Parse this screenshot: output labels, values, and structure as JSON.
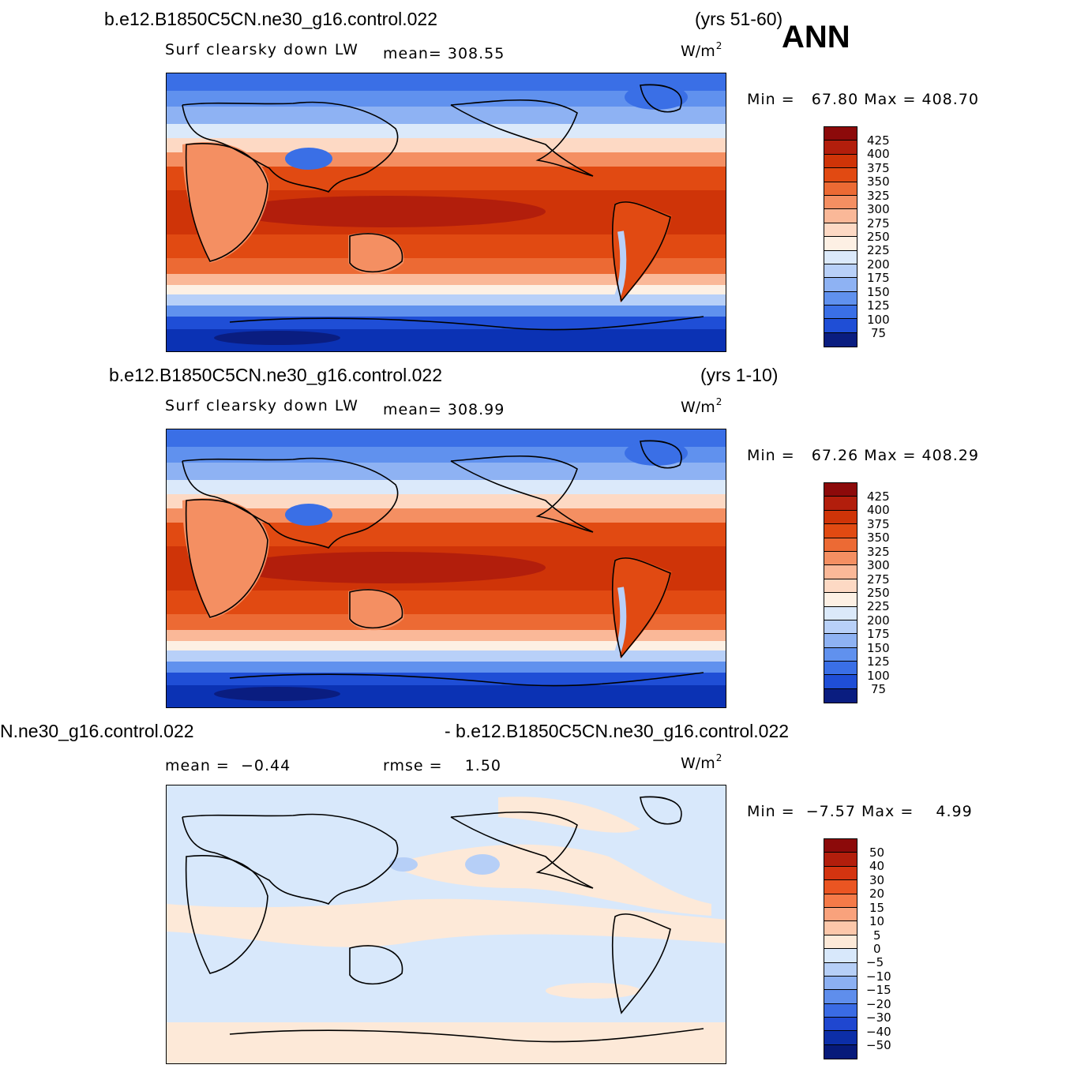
{
  "season": "ANN",
  "chart_data": [
    {
      "type": "heatmap",
      "case_title": "b.e12.B1850C5CN.ne30_g16.control.022",
      "years": "(yrs 51-60)",
      "variable": "Surf clearsky down LW",
      "stat_label": "mean=",
      "stat_value": "308.55",
      "units_base": "W/m",
      "units_exp": "2",
      "minmax": "Min =   67.80 Max = 408.70",
      "min": 67.8,
      "max": 408.7,
      "mean": 308.55,
      "colorbar": {
        "levels": [
          "425",
          "400",
          "375",
          "350",
          "325",
          "300",
          "275",
          "250",
          "225",
          "200",
          "175",
          "150",
          "125",
          "100",
          "75"
        ],
        "colors": [
          "#8c0a0a",
          "#b21e0c",
          "#cf3408",
          "#e14a12",
          "#ec6a34",
          "#f48f62",
          "#fab898",
          "#fdd9c4",
          "#fdf0e4",
          "#dbe9fa",
          "#b8d0f8",
          "#8eb2f3",
          "#6091ee",
          "#3a6fe6",
          "#1f4ed6",
          "#0b32b4",
          "#0a1d80"
        ]
      },
      "xlabel": "",
      "ylabel": ""
    },
    {
      "type": "heatmap",
      "case_title": "b.e12.B1850C5CN.ne30_g16.control.022",
      "years": "(yrs 1-10)",
      "variable": "Surf clearsky down LW",
      "stat_label": "mean=",
      "stat_value": "308.99",
      "units_base": "W/m",
      "units_exp": "2",
      "minmax": "Min =   67.26 Max = 408.29",
      "min": 67.26,
      "max": 408.29,
      "mean": 308.99,
      "colorbar": {
        "levels": [
          "425",
          "400",
          "375",
          "350",
          "325",
          "300",
          "275",
          "250",
          "225",
          "200",
          "175",
          "150",
          "125",
          "100",
          "75"
        ],
        "colors": [
          "#8c0a0a",
          "#b21e0c",
          "#cf3408",
          "#e14a12",
          "#ec6a34",
          "#f48f62",
          "#fab898",
          "#fdd9c4",
          "#fdf0e4",
          "#dbe9fa",
          "#b8d0f8",
          "#8eb2f3",
          "#6091ee",
          "#3a6fe6",
          "#1f4ed6",
          "#0b32b4",
          "#0a1d80"
        ]
      },
      "xlabel": "",
      "ylabel": ""
    },
    {
      "type": "heatmap",
      "diff_title_left": "N.ne30_g16.control.022",
      "diff_title_right": "- b.e12.B1850C5CN.ne30_g16.control.022",
      "mean_label": "mean =",
      "mean_value": "−0.44",
      "rmse_label": "rmse =",
      "rmse_value": "1.50",
      "units_base": "W/m",
      "units_exp": "2",
      "minmax": "Min =  −7.57 Max =    4.99",
      "min": -7.57,
      "max": 4.99,
      "mean": -0.44,
      "rmse": 1.5,
      "colorbar": {
        "levels": [
          "50",
          "40",
          "30",
          "20",
          "15",
          "10",
          "5",
          "0",
          "−5",
          "−10",
          "−15",
          "−20",
          "−30",
          "−40",
          "−50"
        ],
        "colors": [
          "#8c0a0a",
          "#b21e0c",
          "#d43410",
          "#ea5522",
          "#f57a48",
          "#f9a27c",
          "#fcc7aa",
          "#fde9d8",
          "#d8e8fb",
          "#b6cff7",
          "#8cb0f2",
          "#5f8eec",
          "#3a6be4",
          "#1f47d0",
          "#0c2ea8",
          "#071a7a"
        ]
      },
      "xlabel": "",
      "ylabel": ""
    }
  ]
}
